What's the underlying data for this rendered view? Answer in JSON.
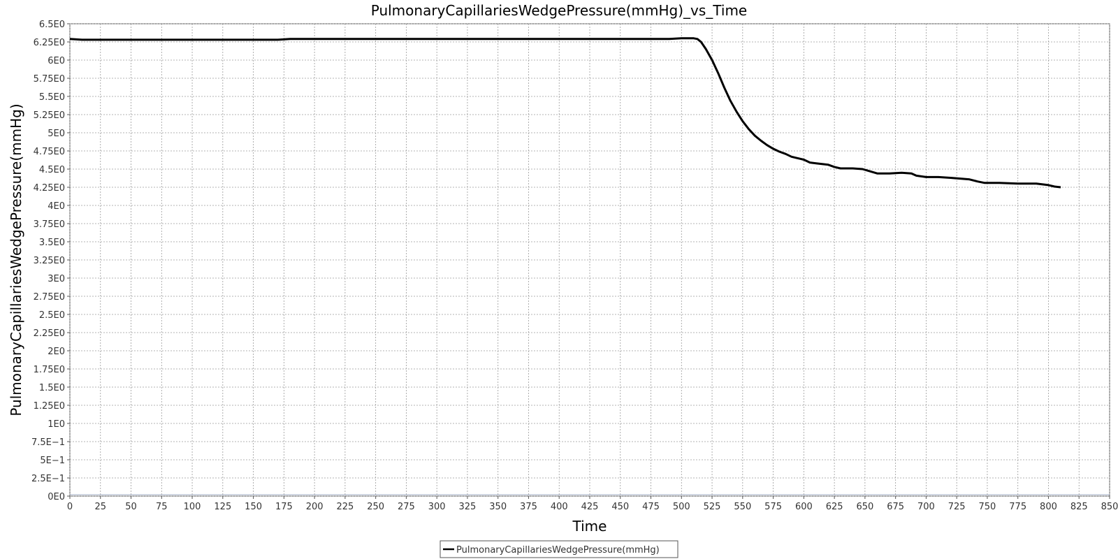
{
  "chart_data": {
    "type": "line",
    "title": "PulmonaryCapillariesWedgePressure(mmHg)_vs_Time",
    "xlabel": "Time",
    "ylabel": "PulmonaryCapillariesWedgePressure(mmHg)",
    "xlim": [
      0,
      850
    ],
    "ylim": [
      0,
      6.5
    ],
    "x_ticks": [
      0,
      25,
      50,
      75,
      100,
      125,
      150,
      175,
      200,
      225,
      250,
      275,
      300,
      325,
      350,
      375,
      400,
      425,
      450,
      475,
      500,
      525,
      550,
      575,
      600,
      625,
      650,
      675,
      700,
      725,
      750,
      775,
      800,
      825,
      850
    ],
    "x_tick_labels": [
      "0",
      "25",
      "50",
      "75",
      "100",
      "125",
      "150",
      "175",
      "200",
      "225",
      "250",
      "275",
      "300",
      "325",
      "350",
      "375",
      "400",
      "425",
      "450",
      "475",
      "500",
      "525",
      "550",
      "575",
      "600",
      "625",
      "650",
      "675",
      "700",
      "725",
      "750",
      "775",
      "800",
      "825",
      "850"
    ],
    "y_ticks": [
      0,
      0.25,
      0.5,
      0.75,
      1,
      1.25,
      1.5,
      1.75,
      2,
      2.25,
      2.5,
      2.75,
      3,
      3.25,
      3.5,
      3.75,
      4,
      4.25,
      4.5,
      4.75,
      5,
      5.25,
      5.5,
      5.75,
      6,
      6.25,
      6.5
    ],
    "y_tick_labels": [
      "0E0",
      "2.5E−1",
      "5E−1",
      "7.5E−1",
      "1E0",
      "1.25E0",
      "1.5E0",
      "1.75E0",
      "2E0",
      "2.25E0",
      "2.5E0",
      "2.75E0",
      "3E0",
      "3.25E0",
      "3.5E0",
      "3.75E0",
      "4E0",
      "4.25E0",
      "4.5E0",
      "4.75E0",
      "5E0",
      "5.25E0",
      "5.5E0",
      "5.75E0",
      "6E0",
      "6.25E0",
      "6.5E0"
    ],
    "grid": true,
    "legend_position": "bottom-center",
    "series": [
      {
        "name": "PulmonaryCapillariesWedgePressure(mmHg)",
        "color": "#000000",
        "x": [
          0,
          10,
          20,
          30,
          40,
          50,
          60,
          70,
          80,
          90,
          100,
          110,
          120,
          130,
          140,
          150,
          160,
          170,
          180,
          190,
          200,
          210,
          220,
          230,
          240,
          250,
          260,
          270,
          280,
          290,
          300,
          310,
          320,
          330,
          340,
          350,
          360,
          370,
          380,
          390,
          400,
          410,
          420,
          430,
          440,
          450,
          460,
          470,
          480,
          490,
          500,
          505,
          510,
          513,
          516,
          520,
          525,
          530,
          535,
          540,
          545,
          550,
          555,
          560,
          565,
          570,
          575,
          580,
          585,
          590,
          595,
          600,
          605,
          610,
          615,
          620,
          625,
          630,
          640,
          648,
          652,
          660,
          670,
          680,
          688,
          692,
          700,
          710,
          720,
          735,
          742,
          748,
          760,
          775,
          790,
          800,
          805,
          810
        ],
        "y": [
          6.29,
          6.28,
          6.28,
          6.28,
          6.28,
          6.28,
          6.28,
          6.28,
          6.28,
          6.28,
          6.28,
          6.28,
          6.28,
          6.28,
          6.28,
          6.28,
          6.28,
          6.28,
          6.29,
          6.29,
          6.29,
          6.29,
          6.29,
          6.29,
          6.29,
          6.29,
          6.29,
          6.29,
          6.29,
          6.29,
          6.29,
          6.29,
          6.29,
          6.29,
          6.29,
          6.29,
          6.29,
          6.29,
          6.29,
          6.29,
          6.29,
          6.29,
          6.29,
          6.29,
          6.29,
          6.29,
          6.29,
          6.29,
          6.29,
          6.29,
          6.3,
          6.3,
          6.3,
          6.29,
          6.25,
          6.15,
          6.0,
          5.82,
          5.62,
          5.44,
          5.29,
          5.16,
          5.05,
          4.96,
          4.89,
          4.83,
          4.78,
          4.74,
          4.71,
          4.67,
          4.65,
          4.63,
          4.59,
          4.58,
          4.57,
          4.56,
          4.53,
          4.51,
          4.51,
          4.5,
          4.48,
          4.44,
          4.44,
          4.45,
          4.44,
          4.41,
          4.39,
          4.39,
          4.38,
          4.36,
          4.33,
          4.31,
          4.31,
          4.3,
          4.3,
          4.28,
          4.26,
          4.25
        ]
      }
    ]
  }
}
